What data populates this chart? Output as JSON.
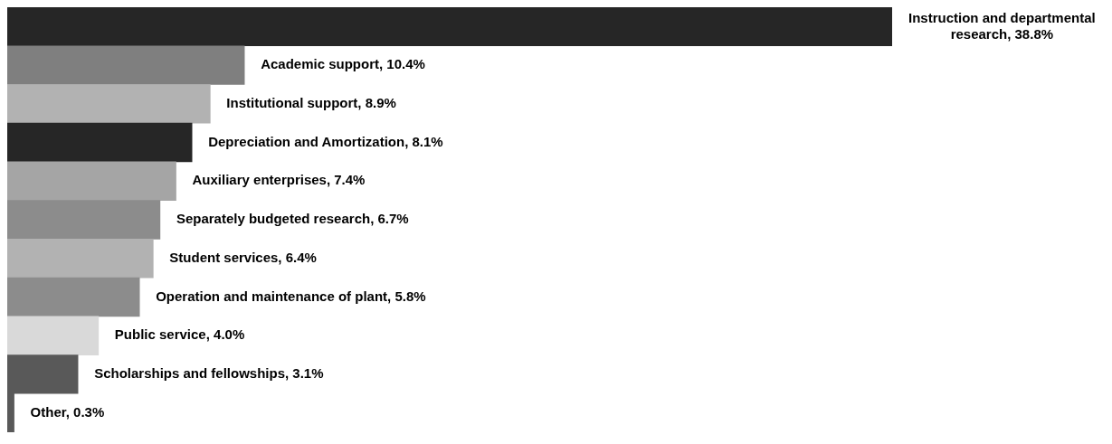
{
  "chart_data": {
    "type": "bar",
    "orientation": "horizontal",
    "categories": [
      null,
      null,
      null,
      null,
      null,
      null,
      null,
      null,
      null,
      null,
      null
    ],
    "values": [
      38.8,
      10.4,
      8.9,
      8.1,
      7.4,
      6.7,
      6.4,
      5.8,
      4.0,
      3.1,
      0.3
    ],
    "value_labels": [
      "Instruction and departmental research, 38.8%",
      "Academic support, 10.4%",
      "Institutional support, 8.9%",
      "Depreciation and Amortization, 8.1%",
      "Auxiliary enterprises, 7.4%",
      "Separately budgeted research, 6.7%",
      "Student services, 6.4%",
      "Operation and maintenance of plant, 5.8%",
      "Public service, 4.0%",
      "Scholarships and fellowships, 3.1%",
      "Other, 0.3%"
    ],
    "colors": [
      "#262626",
      "#7f7f7f",
      "#b2b2b2",
      "#262626",
      "#a5a5a5",
      "#8c8c8c",
      "#b2b2b2",
      "#8c8c8c",
      "#d9d9d9",
      "#595959",
      "#595959"
    ],
    "legend": false
  }
}
